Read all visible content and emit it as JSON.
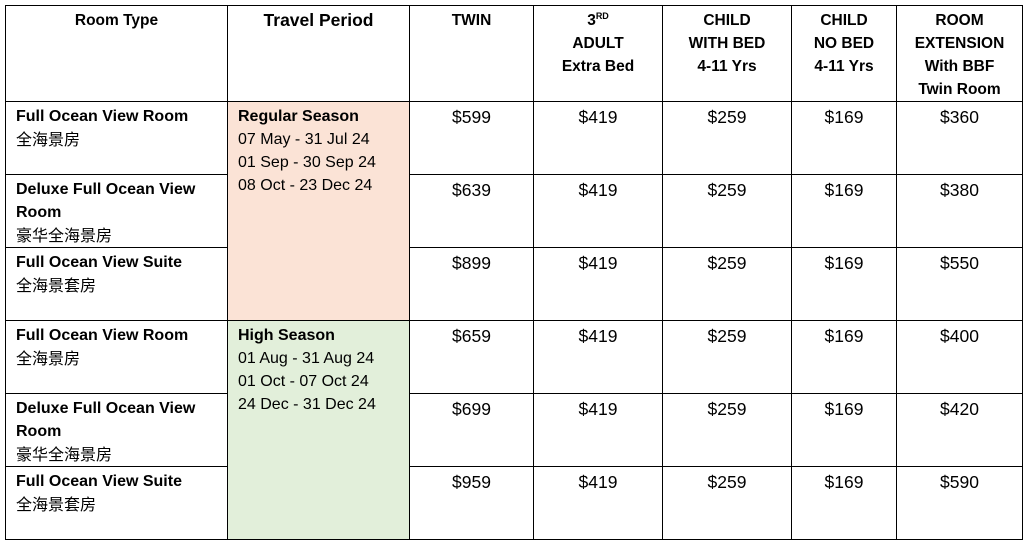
{
  "headers": {
    "room_type": "Room Type",
    "travel_period": "Travel Period",
    "twin": "TWIN",
    "third_adult_num": "3",
    "third_adult_sup": "RD",
    "third_adult_l2": "ADULT",
    "third_adult_l3": "Extra Bed",
    "child_bed_l1": "CHILD",
    "child_bed_l2": "WITH BED",
    "child_bed_l3": "4-11 Yrs",
    "child_nobed_l1": "CHILD",
    "child_nobed_l2": "NO BED",
    "child_nobed_l3": "4-11 Yrs",
    "ext_l1": "ROOM",
    "ext_l2": "EXTENSION",
    "ext_l3": "With BBF",
    "ext_l4": "Twin Room"
  },
  "colors": {
    "regular_season_bg": "#fbe3d6",
    "high_season_bg": "#e2efda"
  },
  "seasons": [
    {
      "name": "Regular Season",
      "dates": [
        "07 May - 31 Jul 24",
        "01 Sep - 30 Sep 24",
        "08 Oct - 23 Dec 24"
      ],
      "rows": [
        {
          "room_en": "Full Ocean View Room",
          "room_cn": "全海景房",
          "twin": "$599",
          "adult": "$419",
          "child_bed": "$259",
          "child_nobed": "$169",
          "extension": "$360"
        },
        {
          "room_en": "Deluxe Full Ocean View",
          "room_en2": "Room",
          "room_cn": "豪华全海景房",
          "twin": "$639",
          "adult": "$419",
          "child_bed": "$259",
          "child_nobed": "$169",
          "extension": "$380"
        },
        {
          "room_en": "Full Ocean View Suite",
          "room_cn": "全海景套房",
          "twin": "$899",
          "adult": "$419",
          "child_bed": "$259",
          "child_nobed": "$169",
          "extension": "$550"
        }
      ]
    },
    {
      "name": "High Season",
      "dates": [
        "01 Aug - 31 Aug 24",
        "01 Oct - 07 Oct 24",
        "24 Dec - 31 Dec 24"
      ],
      "rows": [
        {
          "room_en": "Full Ocean View Room",
          "room_cn": "全海景房",
          "twin": "$659",
          "adult": "$419",
          "child_bed": "$259",
          "child_nobed": "$169",
          "extension": "$400"
        },
        {
          "room_en": "Deluxe Full Ocean View",
          "room_en2": "Room",
          "room_cn": "豪华全海景房",
          "twin": "$699",
          "adult": "$419",
          "child_bed": "$259",
          "child_nobed": "$169",
          "extension": "$420"
        },
        {
          "room_en": "Full Ocean View Suite",
          "room_cn": "全海景套房",
          "twin": "$959",
          "adult": "$419",
          "child_bed": "$259",
          "child_nobed": "$169",
          "extension": "$590"
        }
      ]
    }
  ]
}
